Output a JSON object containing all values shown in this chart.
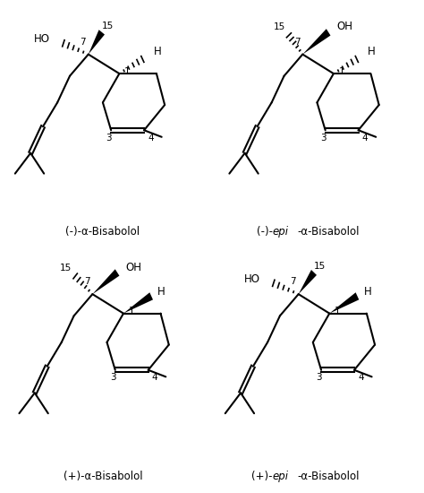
{
  "background_color": "#ffffff",
  "line_color": "#000000",
  "fig_width": 4.74,
  "fig_height": 5.5,
  "dpi": 100,
  "labels": {
    "top_left": "(-)-α-Bisabolol",
    "top_right_pre": "(-)-",
    "top_right_epi": "epi",
    "top_right_post": "-α-Bisabolol",
    "bottom_left": "(+)-α-Bisabolol",
    "bottom_right_pre": "(+)-",
    "bottom_right_epi": "epi",
    "bottom_right_post": "-α-Bisabolol"
  }
}
